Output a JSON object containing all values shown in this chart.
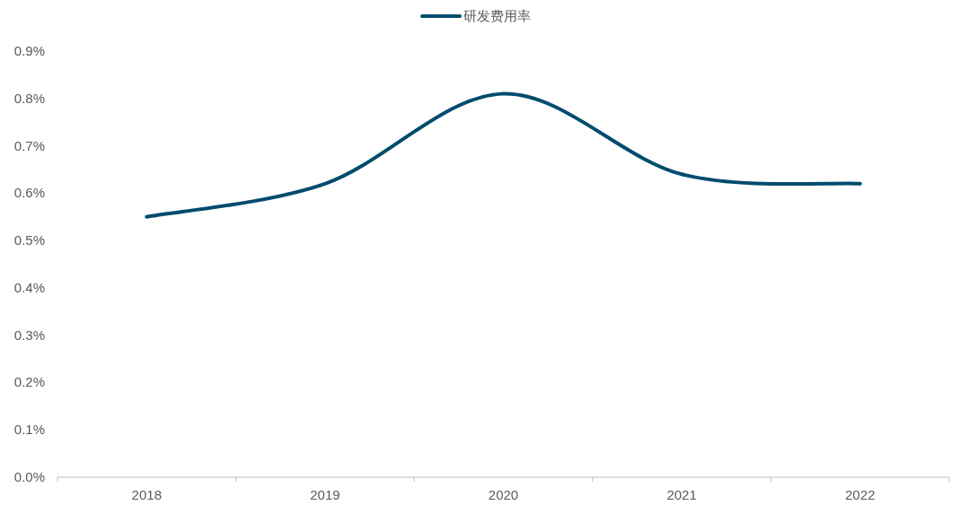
{
  "chart_data": {
    "type": "line",
    "categories": [
      "2018",
      "2019",
      "2020",
      "2021",
      "2022"
    ],
    "series": [
      {
        "name": "研发费用率",
        "color": "#004b6e",
        "values": [
          0.55,
          0.62,
          0.81,
          0.64,
          0.62
        ]
      }
    ],
    "ylim": [
      0,
      0.9
    ],
    "yticks": [
      {
        "value": 0,
        "label": "0.0%"
      },
      {
        "value": 0.1,
        "label": "0.1%"
      },
      {
        "value": 0.2,
        "label": "0.2%"
      },
      {
        "value": 0.3,
        "label": "0.3%"
      },
      {
        "value": 0.4,
        "label": "0.4%"
      },
      {
        "value": 0.5,
        "label": "0.5%"
      },
      {
        "value": 0.6,
        "label": "0.6%"
      },
      {
        "value": 0.7,
        "label": "0.7%"
      },
      {
        "value": 0.8,
        "label": "0.8%"
      },
      {
        "value": 0.9,
        "label": "0.9%"
      }
    ],
    "grid": false,
    "legend": "top",
    "marker": "none",
    "line_style": "solid"
  }
}
